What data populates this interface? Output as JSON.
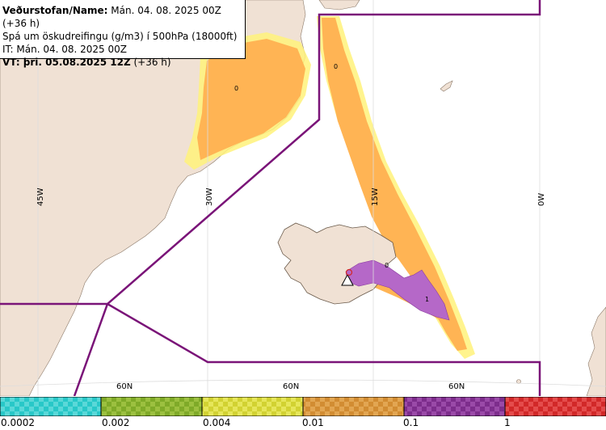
{
  "header": {
    "line1_bold": "Veðurstofan/Name:",
    "line1_rest": " Mán. 04. 08. 2025 00Z (+36 h)",
    "line2": "Spá um öskudreifingu (g/m3) í 500hPa (18000ft)",
    "line3": "IT: Mán. 04. 08. 2025 00Z",
    "line4_bold": "VT: þri. 05.08.2025 12Z",
    "line4_rest": " (+36 h)"
  },
  "map": {
    "lon_labels": [
      "45W",
      "30W",
      "15W",
      "0W"
    ],
    "lat_labels": [
      "60N",
      "60N",
      "60N"
    ],
    "contour_labels": [
      "0",
      "0",
      "1",
      "0"
    ],
    "colors": {
      "land": "#f0e1d4",
      "sea": "#ffffff",
      "ash_low": "#ffb454",
      "ash_mid": "#b568c8",
      "ash_fringe": "#fff27a",
      "boundary": "#7a1478",
      "grid": "#dddddd"
    },
    "volcano_icon": "volcano-warning-triangle-icon"
  },
  "colorbar": {
    "labels": [
      "0.0002",
      "0.002",
      "0.004",
      "0.01",
      "0.1",
      "1"
    ],
    "colors": [
      "#28c8c8",
      "#7faa28",
      "#d2d232",
      "#d28c32",
      "#7d2d8c",
      "#d22828"
    ]
  }
}
